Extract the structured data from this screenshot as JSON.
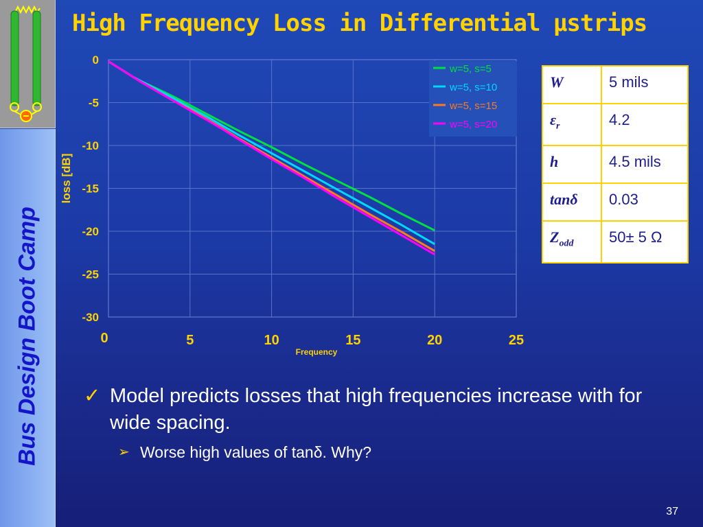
{
  "slide": {
    "title": "High Frequency Loss in Differential μstrips",
    "sidebar_label": "Bus Design Boot Camp",
    "page_number": "37"
  },
  "colors": {
    "title": "#ffd200",
    "background_top": "#1f49b7",
    "background_bottom": "#161f79",
    "sidebar": "#8ab0f2",
    "sidebar_text": "#1414c8",
    "logo_conductor": "#2fb82f",
    "logo_pad": "#ffff00",
    "logo_resistor": "#ff6a00"
  },
  "icons": {
    "logo": "differential-pair-logo-icon",
    "bullet_level1": "checkmark-icon",
    "bullet_level2": "arrowhead-icon"
  },
  "chart_data": {
    "type": "line",
    "title": "",
    "xlabel": "Frequency",
    "ylabel": "loss [dB]",
    "xlim": [
      0,
      25
    ],
    "ylim": [
      -30,
      0
    ],
    "x_ticks": [
      "0",
      "5",
      "10",
      "15",
      "20",
      "25"
    ],
    "y_ticks": [
      "0",
      "-5",
      "-10",
      "-15",
      "-20",
      "-25",
      "-30"
    ],
    "grid": true,
    "legend_position": "top-right",
    "x": [
      0,
      0.5,
      1,
      1.5,
      2,
      3,
      4,
      5,
      6,
      7,
      8,
      10,
      12,
      14,
      16,
      18,
      20
    ],
    "series": [
      {
        "name": "w=5, s=5",
        "color": "#00e040",
        "values": [
          -0.2,
          -0.8,
          -1.4,
          -2.0,
          -2.5,
          -3.4,
          -4.3,
          -5.3,
          -6.3,
          -7.3,
          -8.3,
          -10.2,
          -12.2,
          -14.1,
          -16.0,
          -18.0,
          -19.9
        ]
      },
      {
        "name": "w=5, s=10",
        "color": "#00d8ff",
        "values": [
          -0.2,
          -0.8,
          -1.4,
          -2.0,
          -2.5,
          -3.5,
          -4.5,
          -5.6,
          -6.6,
          -7.7,
          -8.8,
          -10.9,
          -13.0,
          -15.1,
          -17.2,
          -19.3,
          -21.5
        ]
      },
      {
        "name": "w=5, s=15",
        "color": "#ff7a20",
        "values": [
          -0.2,
          -0.8,
          -1.4,
          -2.0,
          -2.6,
          -3.7,
          -4.8,
          -5.8,
          -6.9,
          -8.0,
          -9.2,
          -11.4,
          -13.6,
          -15.8,
          -18.0,
          -20.1,
          -22.3
        ]
      },
      {
        "name": "w=5, s=20",
        "color": "#ff00ff",
        "values": [
          -0.2,
          -0.8,
          -1.4,
          -2.0,
          -2.6,
          -3.7,
          -4.8,
          -5.9,
          -7.0,
          -8.1,
          -9.3,
          -11.6,
          -13.8,
          -16.1,
          -18.3,
          -20.5,
          -22.7
        ]
      }
    ]
  },
  "table": {
    "rows": [
      {
        "symbol": "W",
        "subscript": "",
        "value": "5 mils"
      },
      {
        "symbol": "ε",
        "subscript": "r",
        "value": "4.2"
      },
      {
        "symbol": "h",
        "subscript": "",
        "value": "4.5 mils"
      },
      {
        "symbol": "tanδ",
        "subscript": "",
        "value": "0.03"
      },
      {
        "symbol": "Z",
        "subscript": "odd",
        "value": "50± 5 Ω"
      }
    ]
  },
  "bullets": {
    "level1_text": "Model predicts losses that high frequencies increase with for wide spacing.",
    "level2_text": "Worse high values of tanδ. Why?"
  }
}
